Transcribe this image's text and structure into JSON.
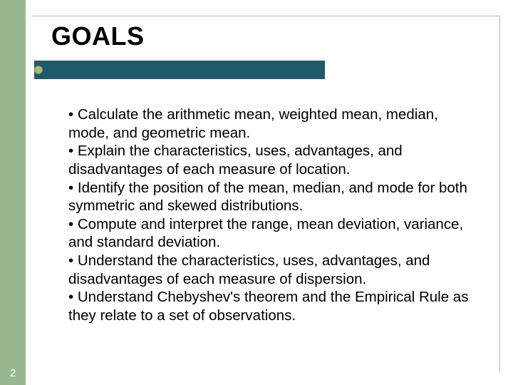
{
  "slide": {
    "title": "GOALS",
    "page_number": "2",
    "colors": {
      "left_strip": "#97b88f",
      "underline_bar": "#1f5a6b",
      "bullet_dot_fill": "#a8c05c",
      "background": "#ffffff",
      "title_text": "#000000",
      "body_text": "#000000",
      "page_num_text": "#ffffff"
    },
    "typography": {
      "title_fontsize": 36,
      "title_weight": "bold",
      "body_fontsize": 20.5,
      "body_lineheight": 1.25,
      "font_family": "Arial"
    },
    "bullets": [
      "• Calculate the arithmetic mean, weighted mean, median, mode, and geometric mean.",
      "• Explain the characteristics, uses, advantages, and disadvantages of each measure of location.",
      "• Identify the position of the mean, median, and mode for both symmetric and skewed distributions.",
      "• Compute and interpret the range, mean deviation, variance, and standard deviation.",
      "• Understand the characteristics, uses, advantages, and disadvantages of each measure of dispersion.",
      "• Understand Chebyshev's theorem and the Empirical Rule as they relate to a set of observations."
    ]
  }
}
